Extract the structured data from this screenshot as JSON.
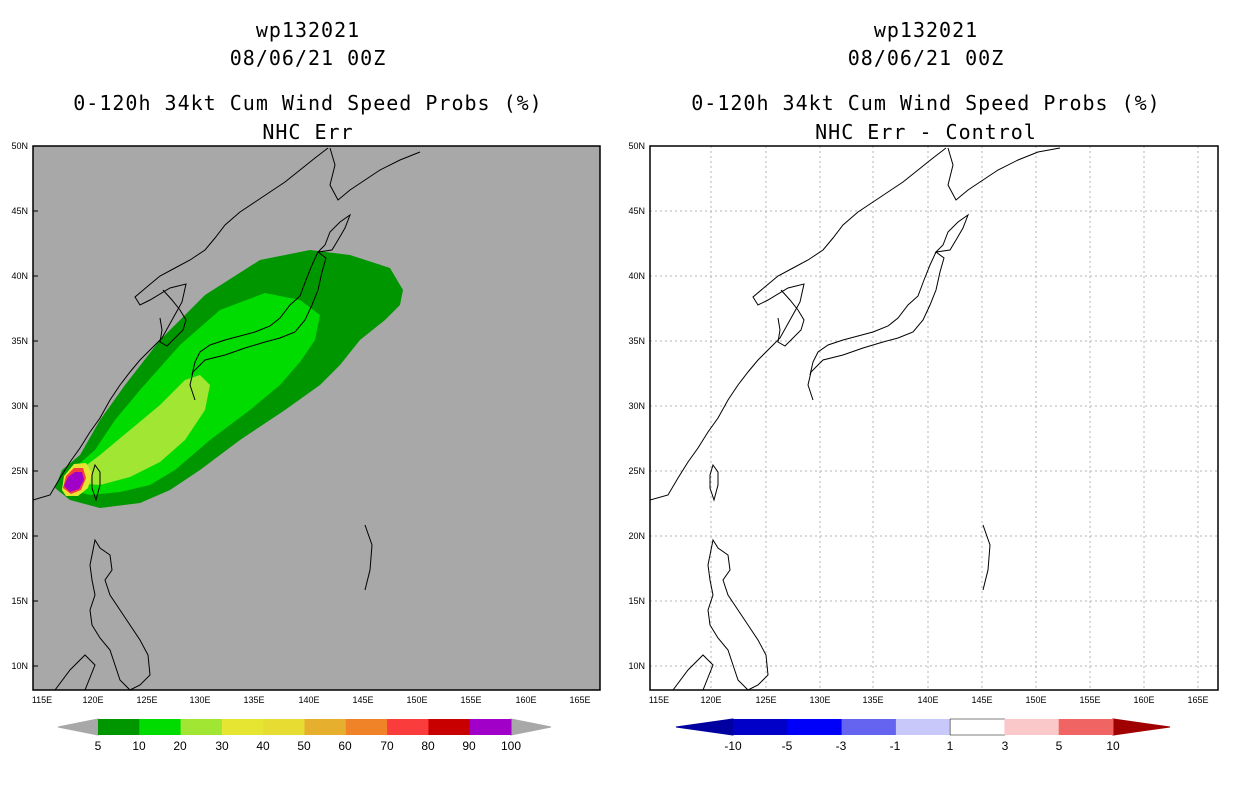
{
  "panels": [
    {
      "id": "left",
      "title_line1": "wp132021",
      "title_line2": "08/06/21 00Z",
      "subtitle_line1": "0-120h 34kt Cum Wind Speed Probs (%)",
      "subtitle_line2": "NHC Err",
      "background_color": "#a8a8a8",
      "colorbar": {
        "labels": [
          "5",
          "10",
          "20",
          "30",
          "40",
          "50",
          "60",
          "70",
          "80",
          "90",
          "100"
        ],
        "colors": [
          "#009600",
          "#00dc00",
          "#a0e632",
          "#e6e632",
          "#e6dc32",
          "#e6af2d",
          "#f08228",
          "#fa3c3c",
          "#c80000",
          "#a000c8"
        ],
        "end_color": "#a8a8a8"
      }
    },
    {
      "id": "right",
      "title_line1": "wp132021",
      "title_line2": "08/06/21 00Z",
      "subtitle_line1": "0-120h 34kt Cum Wind Speed Probs (%)",
      "subtitle_line2": "NHC Err - Control",
      "background_color": "#ffffff",
      "colorbar": {
        "labels": [
          "-10",
          "-5",
          "-3",
          "-1",
          "1",
          "3",
          "5",
          "10"
        ],
        "colors": [
          "#0000c8",
          "#0000fa",
          "#6464f0",
          "#c8c8fa",
          "#ffffff",
          "#fac8c8",
          "#f06464",
          "#fa0000",
          "#c80000"
        ],
        "left_end_color": "#0000a0",
        "right_end_color": "#a00000"
      }
    }
  ],
  "map": {
    "lat_labels": [
      "50N",
      "45N",
      "40N",
      "35N",
      "30N",
      "25N",
      "20N",
      "15N",
      "10N"
    ],
    "lon_labels": [
      "115E",
      "120E",
      "125E",
      "130E",
      "135E",
      "140E",
      "145E",
      "150E",
      "155E",
      "160E",
      "165E"
    ]
  }
}
